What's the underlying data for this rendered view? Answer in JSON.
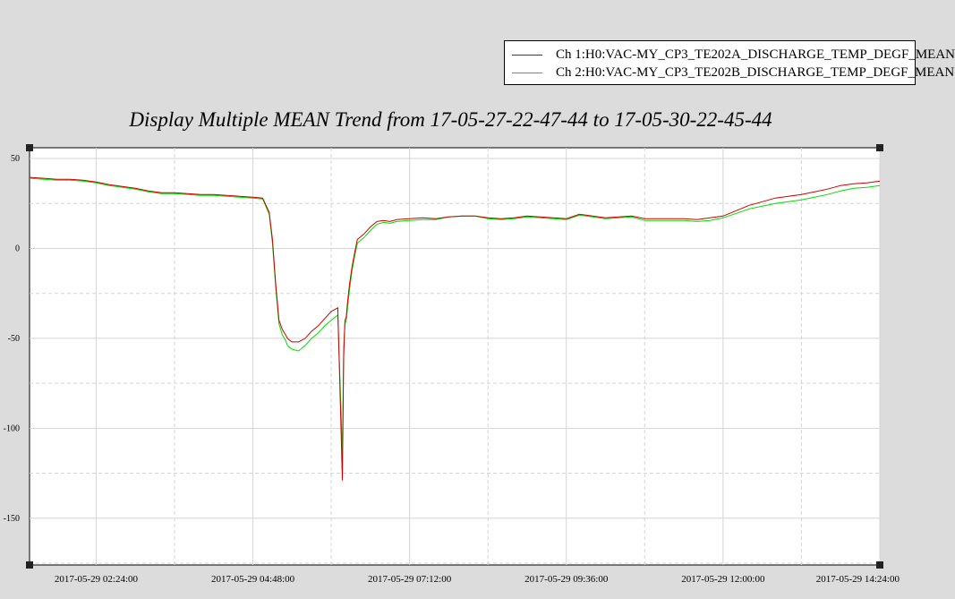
{
  "chart_data": {
    "type": "line",
    "title": "Display Multiple MEAN Trend from 17-05-27-22-47-44 to 17-05-30-22-45-44",
    "legend_position": "top-right",
    "grid": true,
    "x_tick_labels": [
      "2017-05-29 02:24:00",
      "2017-05-29 04:48:00",
      "2017-05-29 07:12:00",
      "2017-05-29 09:36:00",
      "2017-05-29 12:00:00",
      "2017-05-29 14:24:00"
    ],
    "x_tick_hours": [
      2.4,
      4.8,
      7.2,
      9.6,
      12.0,
      14.4
    ],
    "xlim_hours": [
      1.38,
      14.4
    ],
    "y_ticks": [
      50,
      0,
      -50,
      -100,
      -150
    ],
    "ylim": [
      -176,
      56
    ],
    "series": [
      {
        "name": "Ch 1:H0:VAC-MY_CP3_TE202A_DISCHARGE_TEMP_DEGF_MEAN",
        "color": "#cc0000",
        "x": [
          1.38,
          1.6,
          1.8,
          2.0,
          2.2,
          2.4,
          2.6,
          2.8,
          3.0,
          3.2,
          3.4,
          3.6,
          3.8,
          4.0,
          4.2,
          4.4,
          4.6,
          4.8,
          4.95,
          5.05,
          5.1,
          5.15,
          5.2,
          5.25,
          5.3,
          5.33,
          5.36,
          5.4,
          5.5,
          5.6,
          5.7,
          5.8,
          5.9,
          6.0,
          6.1,
          6.15,
          6.17,
          6.19,
          6.21,
          6.23,
          6.25,
          6.28,
          6.32,
          6.36,
          6.4,
          6.5,
          6.6,
          6.7,
          6.8,
          6.9,
          7.0,
          7.2,
          7.4,
          7.6,
          7.8,
          8.0,
          8.2,
          8.4,
          8.6,
          8.8,
          9.0,
          9.2,
          9.4,
          9.6,
          9.8,
          10.0,
          10.2,
          10.4,
          10.6,
          10.8,
          11.0,
          11.2,
          11.4,
          11.6,
          11.8,
          12.0,
          12.2,
          12.4,
          12.6,
          12.8,
          13.0,
          13.2,
          13.4,
          13.6,
          13.8,
          14.0,
          14.2,
          14.4
        ],
        "values": [
          39.5,
          39,
          38.5,
          38.5,
          38,
          37,
          35.5,
          34.5,
          33.5,
          32,
          31,
          31,
          30.5,
          30,
          30,
          29.5,
          29,
          28.5,
          28,
          20,
          5,
          -20,
          -40,
          -45,
          -48,
          -50,
          -51,
          -52,
          -52,
          -50,
          -46,
          -43,
          -39,
          -35,
          -33,
          -100,
          -129,
          -60,
          -40,
          -38,
          -30,
          -20,
          -10,
          -2,
          5,
          8,
          12,
          15,
          15.5,
          15,
          16,
          16.5,
          17,
          16.5,
          17.5,
          18,
          18,
          17,
          16.5,
          17,
          18,
          17.5,
          17,
          16.5,
          19,
          18,
          17,
          17.5,
          18,
          16.5,
          16.5,
          16.5,
          16.5,
          16,
          17,
          18,
          21,
          24,
          26,
          28,
          29,
          30,
          31.5,
          33,
          35,
          36,
          36.5,
          37.5
        ]
      },
      {
        "name": "Ch 2:H0:VAC-MY_CP3_TE202B_DISCHARGE_TEMP_DEGF_MEAN",
        "color": "#00dd00",
        "x": [
          1.38,
          1.6,
          1.8,
          2.0,
          2.2,
          2.4,
          2.6,
          2.8,
          3.0,
          3.2,
          3.4,
          3.6,
          3.8,
          4.0,
          4.2,
          4.4,
          4.6,
          4.8,
          4.95,
          5.05,
          5.1,
          5.15,
          5.2,
          5.25,
          5.3,
          5.33,
          5.36,
          5.4,
          5.5,
          5.6,
          5.7,
          5.8,
          5.9,
          6.0,
          6.1,
          6.15,
          6.17,
          6.19,
          6.21,
          6.23,
          6.25,
          6.28,
          6.32,
          6.36,
          6.4,
          6.5,
          6.6,
          6.7,
          6.8,
          6.9,
          7.0,
          7.2,
          7.4,
          7.6,
          7.8,
          8.0,
          8.2,
          8.4,
          8.6,
          8.8,
          9.0,
          9.2,
          9.4,
          9.6,
          9.8,
          10.0,
          10.2,
          10.4,
          10.6,
          10.8,
          11.0,
          11.2,
          11.4,
          11.6,
          11.8,
          12.0,
          12.2,
          12.4,
          12.6,
          12.8,
          13.0,
          13.2,
          13.4,
          13.6,
          13.8,
          14.0,
          14.2,
          14.4
        ],
        "values": [
          39,
          38.5,
          38,
          38,
          37.5,
          36.5,
          35,
          34,
          33,
          31.5,
          30.5,
          30.5,
          30,
          29.5,
          29.5,
          29,
          28.5,
          28,
          27.5,
          19,
          3,
          -22,
          -42,
          -48,
          -51,
          -54,
          -55,
          -56,
          -57,
          -54,
          -50,
          -47,
          -43,
          -40,
          -37,
          -90,
          -115,
          -55,
          -42,
          -40,
          -33,
          -23,
          -12,
          -4,
          3,
          6,
          10,
          13.5,
          14.5,
          14,
          15,
          15.5,
          16,
          16,
          17.5,
          18,
          18,
          16.5,
          16,
          16.5,
          17.5,
          17,
          16.5,
          16,
          18.5,
          17.5,
          16.5,
          17,
          17.5,
          15.5,
          15.5,
          15.5,
          15.5,
          15,
          15.5,
          17,
          19.5,
          22,
          23.5,
          25,
          26,
          27,
          28.5,
          30,
          32,
          33.5,
          34,
          35
        ]
      }
    ]
  }
}
